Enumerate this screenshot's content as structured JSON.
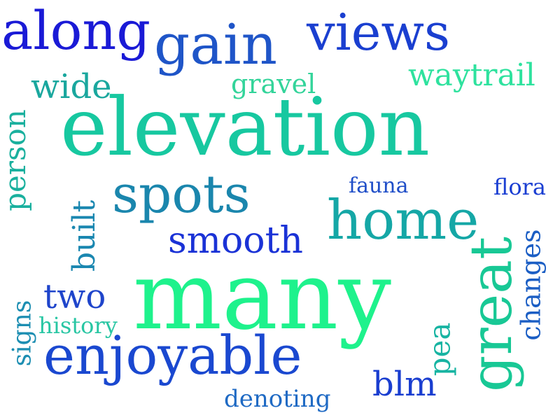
{
  "words": [
    {
      "text": "along",
      "color": "#1a1ad6"
    },
    {
      "text": "gain",
      "color": "#1f55c8"
    },
    {
      "text": "views",
      "color": "#1a3fd0"
    },
    {
      "text": "wide",
      "color": "#1aa79e"
    },
    {
      "text": "gravel",
      "color": "#33d49a"
    },
    {
      "text": "waytrail",
      "color": "#2ee29e"
    },
    {
      "text": "elevation",
      "color": "#17c8a0"
    },
    {
      "text": "person",
      "color": "#1ab09e"
    },
    {
      "text": "spots",
      "color": "#1a86ad"
    },
    {
      "text": "fauna",
      "color": "#1f4ec8"
    },
    {
      "text": "flora",
      "color": "#1a3ed2"
    },
    {
      "text": "home",
      "color": "#15a7a6"
    },
    {
      "text": "built",
      "color": "#1a87b0"
    },
    {
      "text": "smooth",
      "color": "#1a32d6"
    },
    {
      "text": "changes",
      "color": "#1b5ec4"
    },
    {
      "text": "two",
      "color": "#1f45cb"
    },
    {
      "text": "many",
      "color": "#1ef28c"
    },
    {
      "text": "great",
      "color": "#18c895"
    },
    {
      "text": "history",
      "color": "#28c6a3"
    },
    {
      "text": "signs",
      "color": "#1c8eb2"
    },
    {
      "text": "pea",
      "color": "#17b4a2"
    },
    {
      "text": "enjoyable",
      "color": "#1a48d0"
    },
    {
      "text": "blm",
      "color": "#1a3ed0"
    },
    {
      "text": "denoting",
      "color": "#1f6ac4"
    }
  ]
}
